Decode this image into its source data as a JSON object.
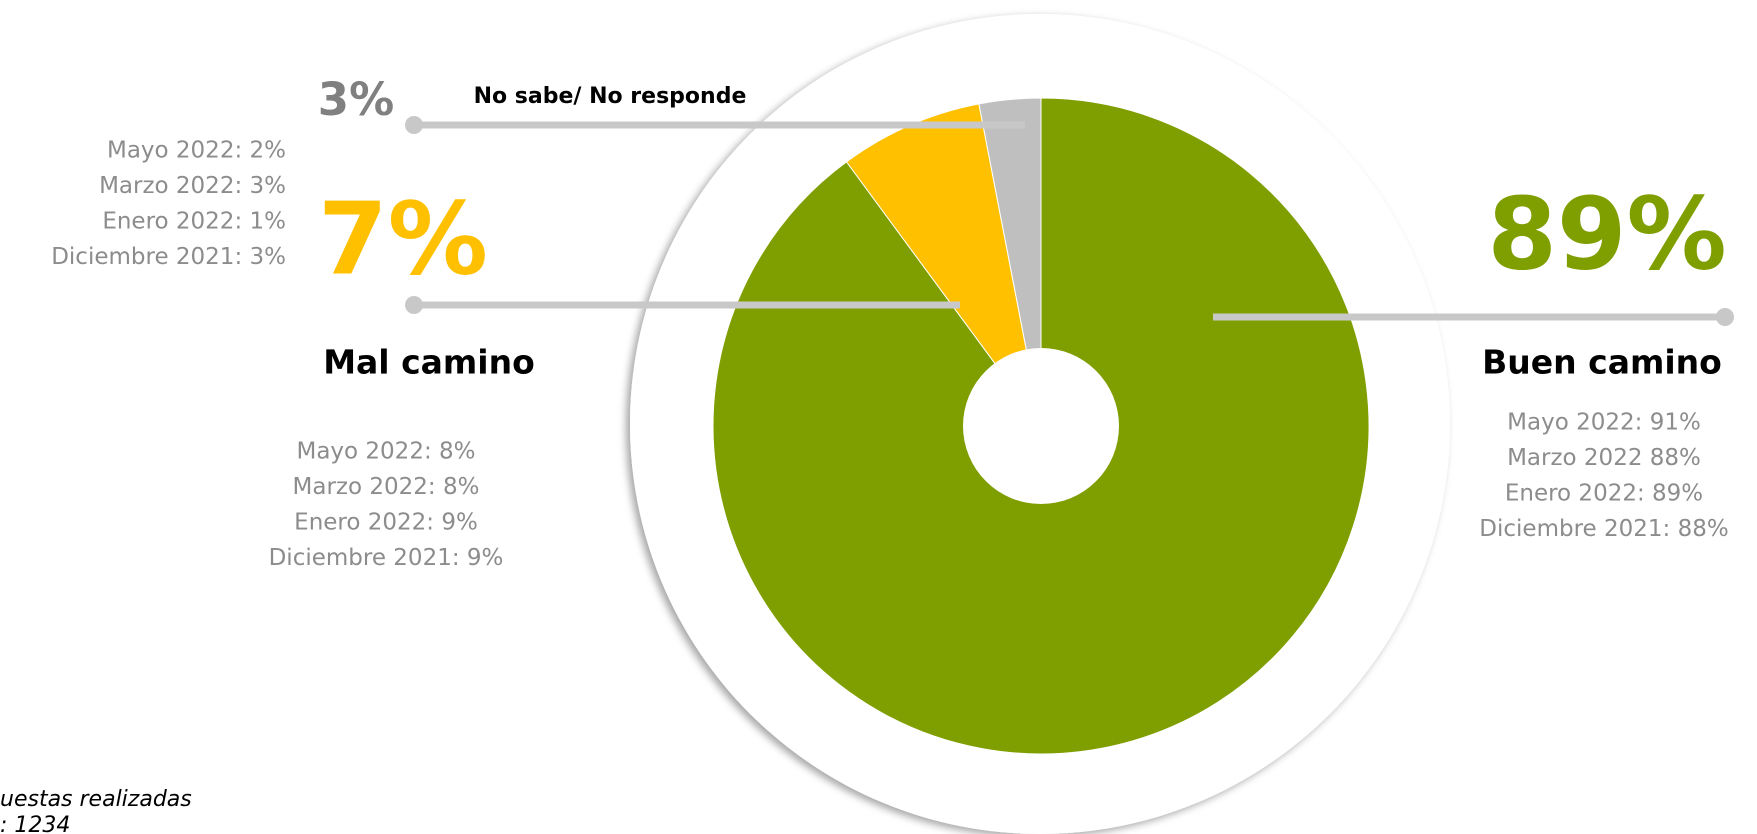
{
  "chart_data": {
    "type": "pie",
    "categories": [
      "Buen camino",
      "Mal camino",
      "No sabe/ No responde"
    ],
    "values": [
      89,
      7,
      3
    ],
    "value_labels": [
      "89%",
      "7%",
      "3%"
    ],
    "colors": [
      "#7f9e00",
      "#ffc000",
      "#bfbfbf"
    ],
    "history": [
      [
        "Mayo 2022: 91%",
        "Marzo 2022 88%",
        "Enero 2022: 89%",
        "Diciembre 2021: 88%"
      ],
      [
        "Mayo 2022: 8%",
        "Marzo 2022: 8%",
        "Enero 2022: 9%",
        "Diciembre 2021: 9%"
      ],
      [
        "Mayo 2022: 2%",
        "Marzo 2022: 3%",
        "Enero 2022: 1%",
        "Diciembre 2021: 3%"
      ]
    ],
    "footnote": [
      "uestas realizadas",
      ": 1234"
    ]
  }
}
